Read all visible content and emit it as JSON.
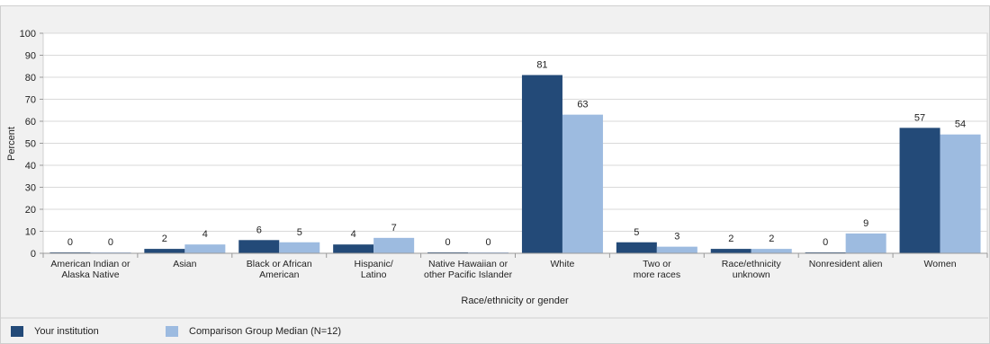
{
  "chart_data": {
    "type": "bar",
    "title": "",
    "xlabel": "Race/ethnicity or gender",
    "ylabel": "Percent",
    "ylim": [
      0,
      100
    ],
    "yticks": [
      0,
      10,
      20,
      30,
      40,
      50,
      60,
      70,
      80,
      90,
      100
    ],
    "grid": true,
    "legend_position": "bottom",
    "categories": [
      [
        "American Indian or",
        "Alaska Native"
      ],
      [
        "Asian"
      ],
      [
        "Black or African",
        "American"
      ],
      [
        "Hispanic/",
        "Latino"
      ],
      [
        "Native Hawaiian or",
        "other Pacific Islander"
      ],
      [
        "White"
      ],
      [
        "Two or",
        "more races"
      ],
      [
        "Race/ethnicity",
        "unknown"
      ],
      [
        "Nonresident alien"
      ],
      [
        "Women"
      ]
    ],
    "series": [
      {
        "name": "Your institution",
        "color": "#234a78",
        "values": [
          0,
          2,
          6,
          4,
          0,
          81,
          5,
          2,
          0,
          57
        ]
      },
      {
        "name": "Comparison Group Median (N=12)",
        "color": "#9dbbe0",
        "values": [
          0,
          4,
          5,
          7,
          0,
          63,
          3,
          2,
          9,
          54
        ]
      }
    ]
  }
}
